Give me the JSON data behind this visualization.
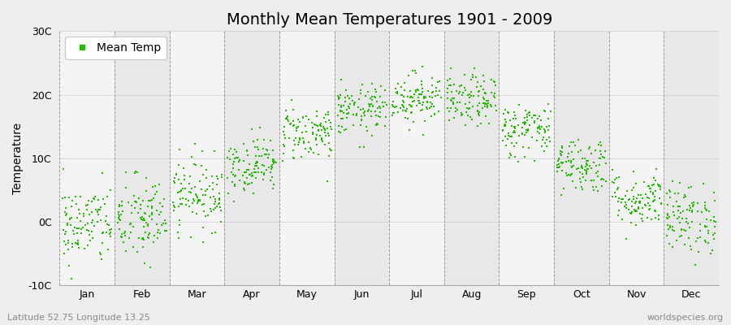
{
  "title": "Monthly Mean Temperatures 1901 - 2009",
  "ylabel": "Temperature",
  "footnote_left": "Latitude 52.75 Longitude 13.25",
  "footnote_right": "worldspecies.org",
  "legend_label": "Mean Temp",
  "dot_color": "#22bb00",
  "dot_size": 3,
  "ylim": [
    -10,
    30
  ],
  "yticks": [
    -10,
    0,
    10,
    20,
    30
  ],
  "ytick_labels": [
    "-10C",
    "0C",
    "10C",
    "20C",
    "30C"
  ],
  "months": [
    "Jan",
    "Feb",
    "Mar",
    "Apr",
    "May",
    "Jun",
    "Jul",
    "Aug",
    "Sep",
    "Oct",
    "Nov",
    "Dec"
  ],
  "month_means": [
    -0.5,
    0.3,
    4.5,
    9.0,
    14.0,
    17.5,
    19.5,
    19.0,
    14.5,
    9.0,
    3.5,
    0.5
  ],
  "month_stds": [
    3.2,
    3.5,
    2.8,
    2.2,
    2.2,
    2.0,
    2.0,
    2.0,
    2.2,
    2.2,
    2.2,
    2.8
  ],
  "n_years": 109,
  "background_color": "#eeeeee",
  "band_color_odd": "#e8e8e8",
  "band_color_even": "#f4f4f4",
  "grid_color": "#999999",
  "title_fontsize": 14,
  "axis_fontsize": 10,
  "tick_fontsize": 9,
  "footnote_fontsize": 8
}
